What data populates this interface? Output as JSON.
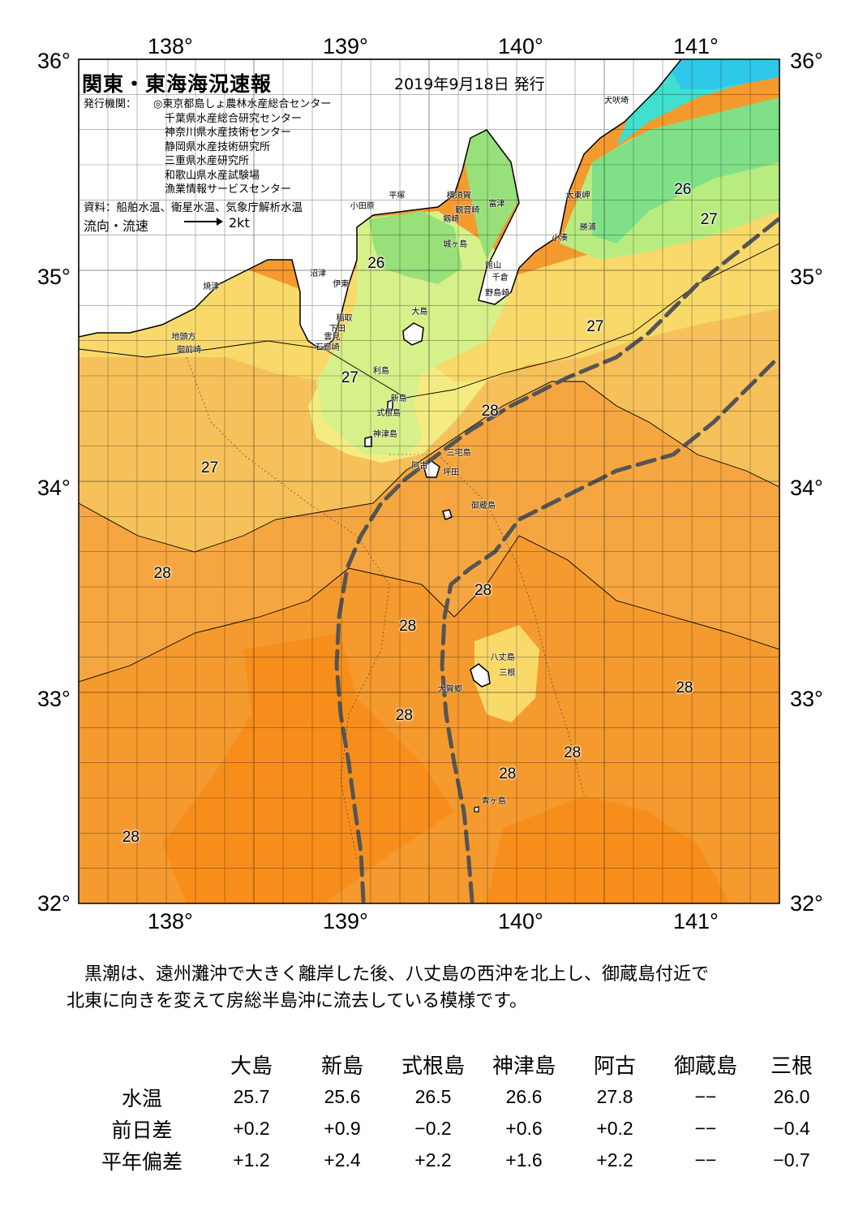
{
  "map": {
    "title": "関東・東海海況速報",
    "date": "2019年9月18日 発行",
    "issuer_label": "発行機関：",
    "issuers": [
      "◎東京都島しょ農林水産総合センター",
      "千葉県水産総合研究センター",
      "神奈川県水産技術センター",
      "静岡県水産技術研究所",
      "三重県水産研究所",
      "和歌山県水産試験場",
      "漁業情報サービスセンター"
    ],
    "source": "資料：船舶水温、衛星水温、気象庁解析水温",
    "flow_label": "流向・流速",
    "flow_scale": "2kt",
    "lon_labels": [
      "138°",
      "139°",
      "140°",
      "141°"
    ],
    "lat_labels": [
      "36°",
      "35°",
      "34°",
      "33°",
      "32°"
    ],
    "lon_range": [
      137.5,
      141.5
    ],
    "lat_range": [
      32,
      36
    ],
    "temp_labels": [
      {
        "lon": 139.2,
        "lat": 35.03,
        "value": "26"
      },
      {
        "lon": 140.95,
        "lat": 35.38,
        "value": "26"
      },
      {
        "lon": 141.1,
        "lat": 35.24,
        "value": "27"
      },
      {
        "lon": 140.45,
        "lat": 34.73,
        "value": "27"
      },
      {
        "lon": 139.05,
        "lat": 34.49,
        "value": "27"
      },
      {
        "lon": 138.25,
        "lat": 34.06,
        "value": "27"
      },
      {
        "lon": 139.85,
        "lat": 34.33,
        "value": "28"
      },
      {
        "lon": 137.98,
        "lat": 33.56,
        "value": "28"
      },
      {
        "lon": 139.81,
        "lat": 33.48,
        "value": "28"
      },
      {
        "lon": 139.38,
        "lat": 33.31,
        "value": "28"
      },
      {
        "lon": 140.96,
        "lat": 33.02,
        "value": "28"
      },
      {
        "lon": 139.36,
        "lat": 32.89,
        "value": "28"
      },
      {
        "lon": 140.32,
        "lat": 32.71,
        "value": "28"
      },
      {
        "lon": 139.95,
        "lat": 32.61,
        "value": "28"
      },
      {
        "lon": 137.8,
        "lat": 32.31,
        "value": "28"
      }
    ],
    "places": [
      {
        "lon": 140.5,
        "lat": 35.8,
        "name": "犬吠埼"
      },
      {
        "lon": 140.28,
        "lat": 35.35,
        "name": "太東岬"
      },
      {
        "lon": 139.6,
        "lat": 35.35,
        "name": "横須賀"
      },
      {
        "lon": 139.27,
        "lat": 35.35,
        "name": "平塚"
      },
      {
        "lon": 139.05,
        "lat": 35.3,
        "name": "小田原"
      },
      {
        "lon": 139.65,
        "lat": 35.28,
        "name": "観音崎"
      },
      {
        "lon": 139.84,
        "lat": 35.31,
        "name": "富津"
      },
      {
        "lon": 139.58,
        "lat": 35.24,
        "name": "剱崎"
      },
      {
        "lon": 140.36,
        "lat": 35.2,
        "name": "勝浦"
      },
      {
        "lon": 140.2,
        "lat": 35.15,
        "name": "小湊"
      },
      {
        "lon": 139.58,
        "lat": 35.12,
        "name": "城ヶ島"
      },
      {
        "lon": 139.82,
        "lat": 35.02,
        "name": "館山"
      },
      {
        "lon": 139.86,
        "lat": 34.96,
        "name": "千倉"
      },
      {
        "lon": 139.82,
        "lat": 34.89,
        "name": "野島崎"
      },
      {
        "lon": 138.82,
        "lat": 34.98,
        "name": "沼津"
      },
      {
        "lon": 138.95,
        "lat": 34.93,
        "name": "伊東"
      },
      {
        "lon": 138.21,
        "lat": 34.92,
        "name": "焼津"
      },
      {
        "lon": 139.4,
        "lat": 34.8,
        "name": "大島"
      },
      {
        "lon": 138.97,
        "lat": 34.77,
        "name": "稲取"
      },
      {
        "lon": 138.93,
        "lat": 34.72,
        "name": "下田"
      },
      {
        "lon": 138.9,
        "lat": 34.68,
        "name": "雲見"
      },
      {
        "lon": 138.85,
        "lat": 34.63,
        "name": "石廊崎"
      },
      {
        "lon": 138.03,
        "lat": 34.68,
        "name": "地頭方"
      },
      {
        "lon": 138.06,
        "lat": 34.62,
        "name": "御前崎"
      },
      {
        "lon": 139.18,
        "lat": 34.52,
        "name": "利島"
      },
      {
        "lon": 139.28,
        "lat": 34.39,
        "name": "新島"
      },
      {
        "lon": 139.2,
        "lat": 34.32,
        "name": "式根島"
      },
      {
        "lon": 139.18,
        "lat": 34.22,
        "name": "神津島"
      },
      {
        "lon": 139.6,
        "lat": 34.13,
        "name": "三宅島"
      },
      {
        "lon": 139.4,
        "lat": 34.07,
        "name": "阿古"
      },
      {
        "lon": 139.58,
        "lat": 34.04,
        "name": "坪田"
      },
      {
        "lon": 139.74,
        "lat": 33.88,
        "name": "御蔵島"
      },
      {
        "lon": 139.85,
        "lat": 33.16,
        "name": "八丈島"
      },
      {
        "lon": 139.9,
        "lat": 33.09,
        "name": "三根"
      },
      {
        "lon": 139.55,
        "lat": 33.01,
        "name": "大賀郷"
      },
      {
        "lon": 139.8,
        "lat": 32.48,
        "name": "青ヶ島"
      }
    ]
  },
  "description": [
    "　黒潮は、遠州灘沖で大きく離岸した後、八丈島の西沖を北上し、御蔵島付近で",
    "北東に向きを変えて房総半島沖に流去している模様です。"
  ],
  "table": {
    "columns": [
      "大島",
      "新島",
      "式根島",
      "神津島",
      "阿古",
      "御蔵島",
      "三根"
    ],
    "rows": [
      {
        "label": "水温",
        "values": [
          "25.7",
          "25.6",
          "26.5",
          "26.6",
          "27.8",
          "−−",
          "26.0"
        ]
      },
      {
        "label": "前日差",
        "values": [
          "+0.2",
          "+0.9",
          "−0.2",
          "+0.6",
          "+0.2",
          "−−",
          "−0.4"
        ]
      },
      {
        "label": "平年偏差",
        "values": [
          "+1.2",
          "+2.4",
          "+2.2",
          "+1.6",
          "+2.2",
          "−−",
          "−0.7"
        ]
      }
    ]
  },
  "colors": {
    "deep_orange": "#f59a2e",
    "orange": "#f5a640",
    "light_orange": "#f6c15a",
    "yellow": "#f8d96a",
    "pale_yellow": "#f4ec82",
    "light_green": "#d6f08a",
    "green": "#98e07a",
    "cyan": "#40e0d0",
    "land": "#ffffff",
    "kuroshio": "#555555"
  }
}
